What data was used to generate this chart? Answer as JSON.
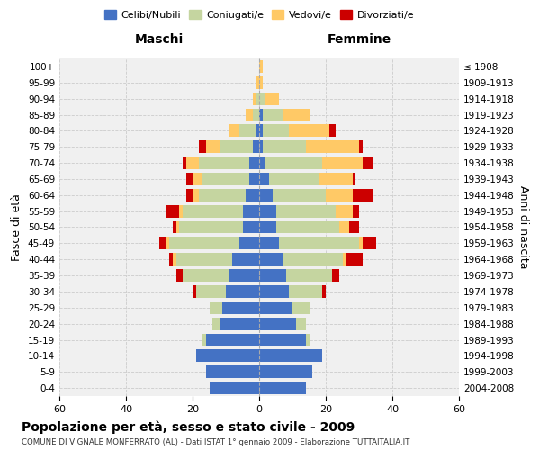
{
  "age_groups": [
    "0-4",
    "5-9",
    "10-14",
    "15-19",
    "20-24",
    "25-29",
    "30-34",
    "35-39",
    "40-44",
    "45-49",
    "50-54",
    "55-59",
    "60-64",
    "65-69",
    "70-74",
    "75-79",
    "80-84",
    "85-89",
    "90-94",
    "95-99",
    "100+"
  ],
  "birth_years": [
    "2004-2008",
    "1999-2003",
    "1994-1998",
    "1989-1993",
    "1984-1988",
    "1979-1983",
    "1974-1978",
    "1969-1973",
    "1964-1968",
    "1959-1963",
    "1954-1958",
    "1949-1953",
    "1944-1948",
    "1939-1943",
    "1934-1938",
    "1929-1933",
    "1924-1928",
    "1919-1923",
    "1914-1918",
    "1909-1913",
    "≤ 1908"
  ],
  "colors": {
    "celibi": "#4472c4",
    "coniugati": "#c5d5a0",
    "vedovi": "#ffc966",
    "divorziati": "#cc0000"
  },
  "maschi": {
    "celibi": [
      15,
      16,
      19,
      16,
      12,
      11,
      10,
      9,
      8,
      6,
      5,
      5,
      4,
      3,
      3,
      2,
      1,
      0,
      0,
      0,
      0
    ],
    "coniugati": [
      0,
      0,
      0,
      1,
      2,
      4,
      9,
      14,
      17,
      21,
      19,
      18,
      14,
      14,
      15,
      10,
      5,
      2,
      1,
      0,
      0
    ],
    "vedovi": [
      0,
      0,
      0,
      0,
      0,
      0,
      0,
      0,
      1,
      1,
      1,
      1,
      2,
      3,
      4,
      4,
      3,
      2,
      1,
      1,
      0
    ],
    "divorziati": [
      0,
      0,
      0,
      0,
      0,
      0,
      1,
      2,
      1,
      2,
      1,
      4,
      2,
      2,
      1,
      2,
      0,
      0,
      0,
      0,
      0
    ]
  },
  "femmine": {
    "celibi": [
      14,
      16,
      19,
      14,
      11,
      10,
      9,
      8,
      7,
      6,
      5,
      5,
      4,
      3,
      2,
      1,
      1,
      1,
      0,
      0,
      0
    ],
    "coniugati": [
      0,
      0,
      0,
      1,
      3,
      5,
      10,
      14,
      18,
      24,
      19,
      18,
      16,
      15,
      17,
      13,
      8,
      6,
      2,
      0,
      0
    ],
    "vedovi": [
      0,
      0,
      0,
      0,
      0,
      0,
      0,
      0,
      1,
      1,
      3,
      5,
      8,
      10,
      12,
      16,
      12,
      8,
      4,
      1,
      1
    ],
    "divorziati": [
      0,
      0,
      0,
      0,
      0,
      0,
      1,
      2,
      5,
      4,
      3,
      2,
      6,
      1,
      3,
      1,
      2,
      0,
      0,
      0,
      0
    ]
  },
  "xlim": 60,
  "title": "Popolazione per età, sesso e stato civile - 2009",
  "subtitle": "COMUNE DI VIGNALE MONFERRATO (AL) - Dati ISTAT 1° gennaio 2009 - Elaborazione TUTTAITALIA.IT",
  "ylabel_left": "Fasce di età",
  "ylabel_right": "Anni di nascita",
  "xlabel_maschi": "Maschi",
  "xlabel_femmine": "Femmine",
  "bg_color": "#f0f0f0",
  "grid_color": "#cccccc"
}
